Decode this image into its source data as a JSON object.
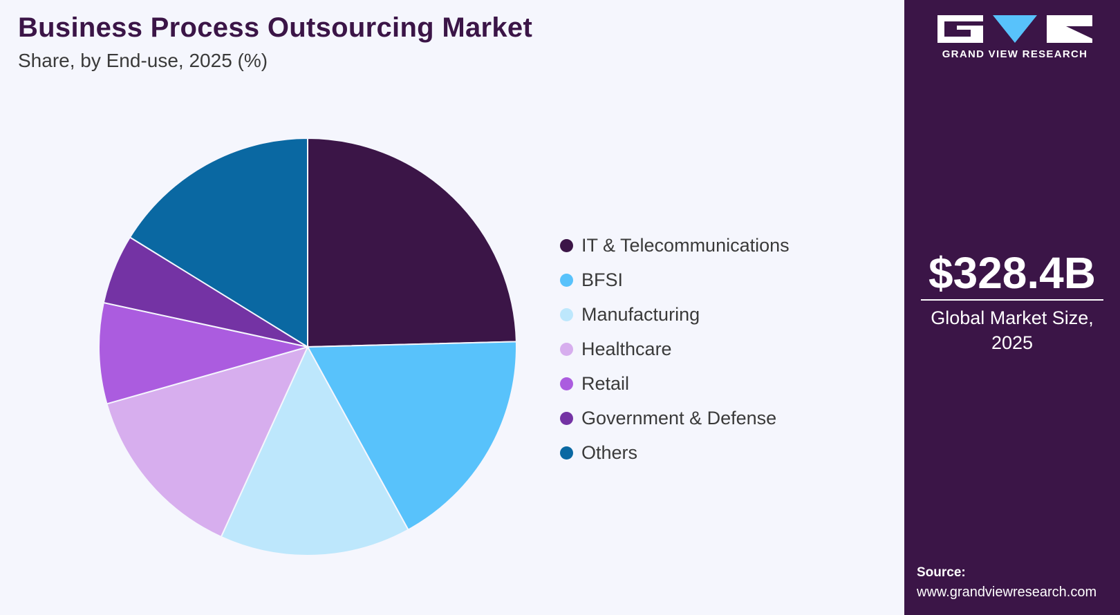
{
  "header": {
    "title": "Business Process Outsourcing Market",
    "subtitle": "Share, by End-use, 2025 (%)"
  },
  "chart_data": {
    "type": "pie",
    "title": "Business Process Outsourcing Market",
    "subtitle": "Share, by End-use, 2025 (%)",
    "categories": [
      "IT & Telecommunications",
      "BFSI",
      "Manufacturing",
      "Healthcare",
      "Retail",
      "Government & Defense",
      "Others"
    ],
    "values": [
      24.6,
      17.4,
      14.8,
      13.8,
      7.8,
      5.4,
      16.2
    ],
    "colors": [
      "#3b1547",
      "#58c2fb",
      "#bde7fc",
      "#d7aeee",
      "#ab5cdf",
      "#7433a4",
      "#0a68a2"
    ],
    "start_angle_deg": 0,
    "direction": "clockwise",
    "legend_position": "right"
  },
  "sidebar": {
    "brand": "GRAND VIEW RESEARCH",
    "market_value": "$328.4B",
    "market_caption": "Global Market Size, 2025",
    "source_label": "Source:",
    "source_url": "www.grandviewresearch.com",
    "logo_color": "#ffffff",
    "logo_accent": "#58c2fb"
  }
}
